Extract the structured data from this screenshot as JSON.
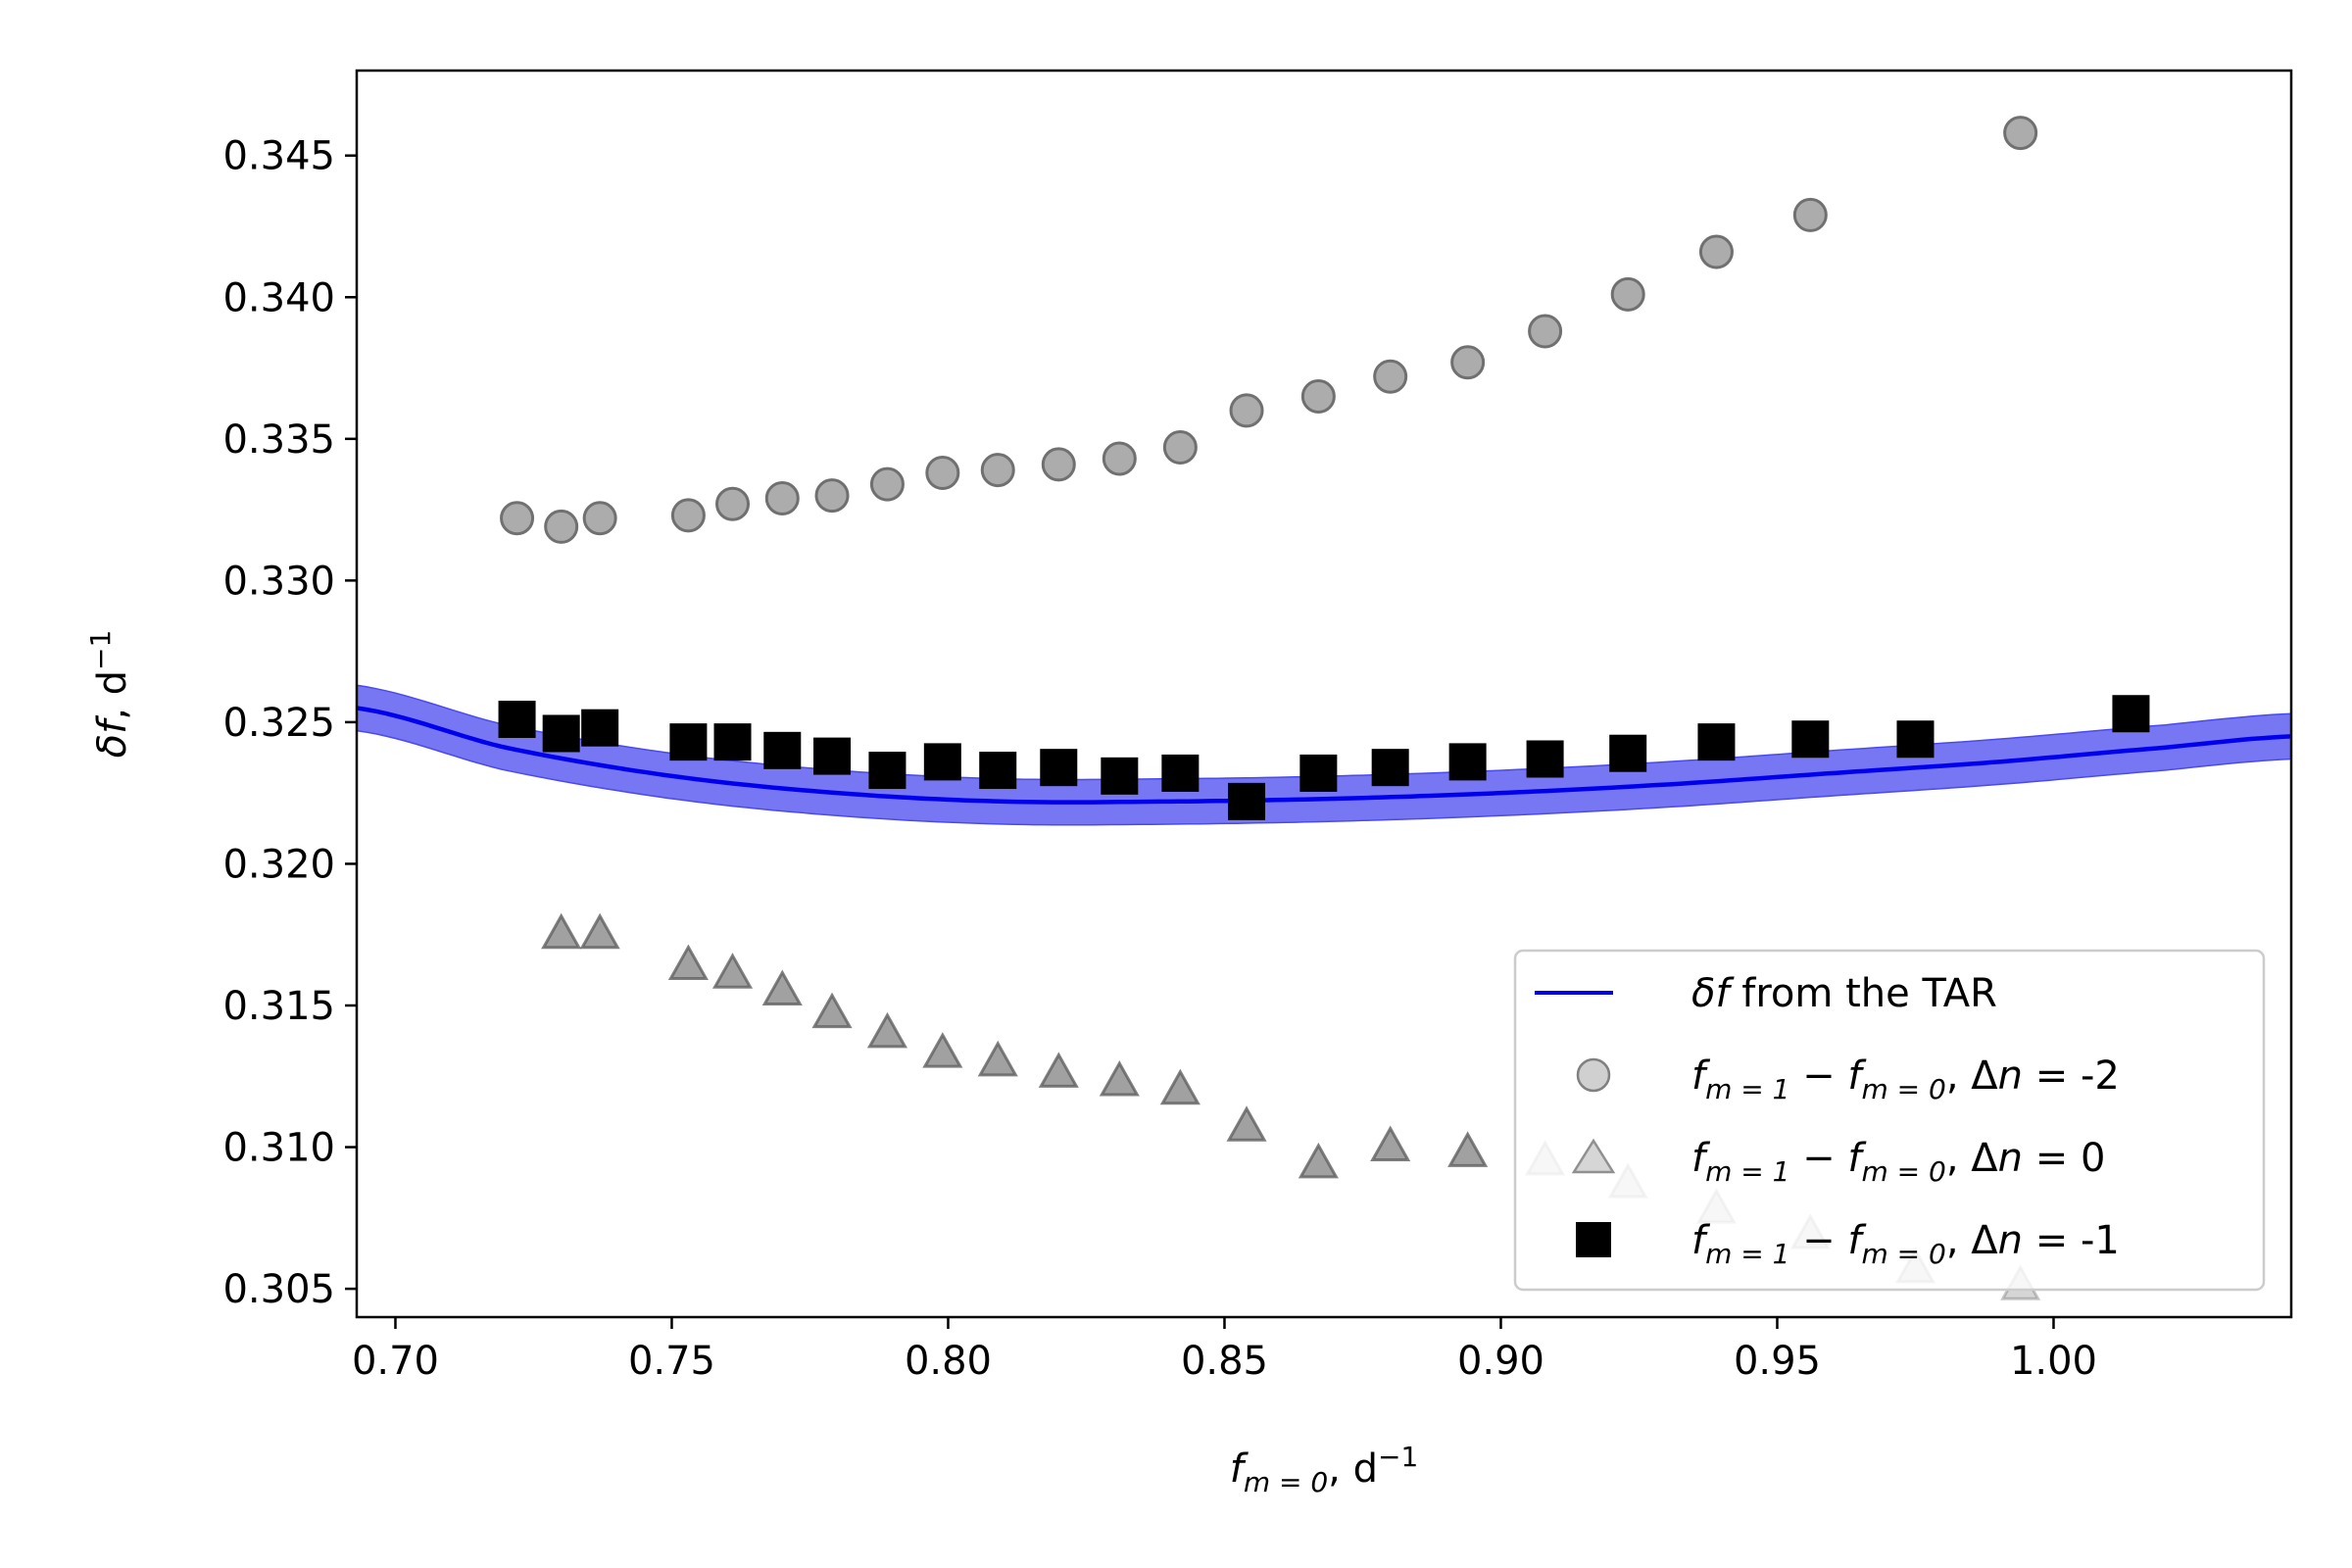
{
  "chart_data": {
    "type": "scatter",
    "xlabel": {
      "var": "f",
      "sub": "m = 0",
      "unit": ", d",
      "sup": "−1"
    },
    "ylabel": {
      "var": "δf",
      "unit": ", d",
      "sup": "−1"
    },
    "xlim": [
      0.693,
      1.043
    ],
    "ylim": [
      0.304,
      0.348
    ],
    "x_ticks": [
      0.7,
      0.75,
      0.8,
      0.85,
      0.9,
      0.95,
      1.0
    ],
    "x_tick_labels": [
      "0.70",
      "0.75",
      "0.80",
      "0.85",
      "0.90",
      "0.95",
      "1.00"
    ],
    "y_ticks": [
      0.305,
      0.31,
      0.315,
      0.32,
      0.325,
      0.33,
      0.335,
      0.34,
      0.345
    ],
    "y_tick_labels": [
      "0.305",
      "0.310",
      "0.315",
      "0.320",
      "0.325",
      "0.330",
      "0.335",
      "0.340",
      "0.345"
    ],
    "grid": false,
    "legend_position": "bottom-right",
    "series": [
      {
        "name": "δf from the TAR",
        "kind": "line-band",
        "color": "#0000ee",
        "band_color": "#4a4af0",
        "x": [
          0.693,
          0.72,
          0.75,
          0.78,
          0.81,
          0.84,
          0.87,
          0.9,
          0.93,
          0.96,
          0.99,
          1.02,
          1.043
        ],
        "y": [
          0.3255,
          0.3241,
          0.3231,
          0.3225,
          0.3222,
          0.3222,
          0.3223,
          0.3225,
          0.3228,
          0.3232,
          0.3236,
          0.3241,
          0.3245
        ],
        "band_halfwidth": 0.0008
      },
      {
        "name": "Δn = -2",
        "kind": "circle",
        "color": "#a0a0a0",
        "x": [
          0.722,
          0.73,
          0.737,
          0.753,
          0.761,
          0.77,
          0.779,
          0.789,
          0.799,
          0.809,
          0.82,
          0.831,
          0.842,
          0.854,
          0.867,
          0.88,
          0.894,
          0.908,
          0.923,
          0.939,
          0.956,
          0.994
        ],
        "y": [
          0.3322,
          0.3319,
          0.3322,
          0.3323,
          0.3327,
          0.3329,
          0.333,
          0.3334,
          0.3338,
          0.3339,
          0.3341,
          0.3343,
          0.3347,
          0.336,
          0.3365,
          0.3372,
          0.3377,
          0.3388,
          0.3401,
          0.3416,
          0.3429,
          0.3458
        ]
      },
      {
        "name": "Δn = 0",
        "kind": "triangle",
        "color": "#909090",
        "x": [
          0.73,
          0.737,
          0.753,
          0.761,
          0.77,
          0.779,
          0.789,
          0.799,
          0.809,
          0.82,
          0.831,
          0.842,
          0.854,
          0.867,
          0.88,
          0.894,
          0.908,
          0.923,
          0.939,
          0.956,
          0.975,
          0.994
        ],
        "y": [
          0.3175,
          0.3175,
          0.3164,
          0.3161,
          0.3155,
          0.3147,
          0.314,
          0.3133,
          0.313,
          0.3126,
          0.3123,
          0.312,
          0.3107,
          0.3094,
          0.31,
          0.3098,
          0.3095,
          0.3087,
          0.3078,
          0.3069,
          0.3057,
          0.3051
        ]
      },
      {
        "name": "Δn = -1",
        "kind": "square",
        "color": "#000000",
        "x": [
          0.722,
          0.73,
          0.737,
          0.753,
          0.761,
          0.77,
          0.779,
          0.789,
          0.799,
          0.809,
          0.82,
          0.831,
          0.842,
          0.854,
          0.867,
          0.88,
          0.894,
          0.908,
          0.923,
          0.939,
          0.956,
          0.975,
          1.014
        ],
        "y": [
          0.3251,
          0.3246,
          0.3248,
          0.3243,
          0.3243,
          0.324,
          0.3238,
          0.3233,
          0.3236,
          0.3233,
          0.3234,
          0.3231,
          0.3232,
          0.3222,
          0.3232,
          0.3234,
          0.3236,
          0.3237,
          0.3239,
          0.3243,
          0.3244,
          0.3244,
          0.3253
        ]
      }
    ],
    "legend": [
      {
        "marker": "line",
        "text": "from the TAR",
        "italic_prefix": "δf"
      },
      {
        "marker": "circle",
        "expr": "f_{m=1} − f_{m=0}, Δn = -2"
      },
      {
        "marker": "triangle",
        "expr": "f_{m=1} − f_{m=0}, Δn = 0"
      },
      {
        "marker": "square",
        "expr": "f_{m=1} − f_{m=0}, Δn = -1"
      }
    ],
    "legend_parts": {
      "f": "f",
      "sub1": "m = 1",
      "minus": " − ",
      "sub0": "m = 0",
      "comma_dn": ", Δ",
      "n": "n",
      "eq": " = ",
      "val_circle": "-2",
      "val_triangle": "0",
      "val_square": "-1"
    }
  }
}
